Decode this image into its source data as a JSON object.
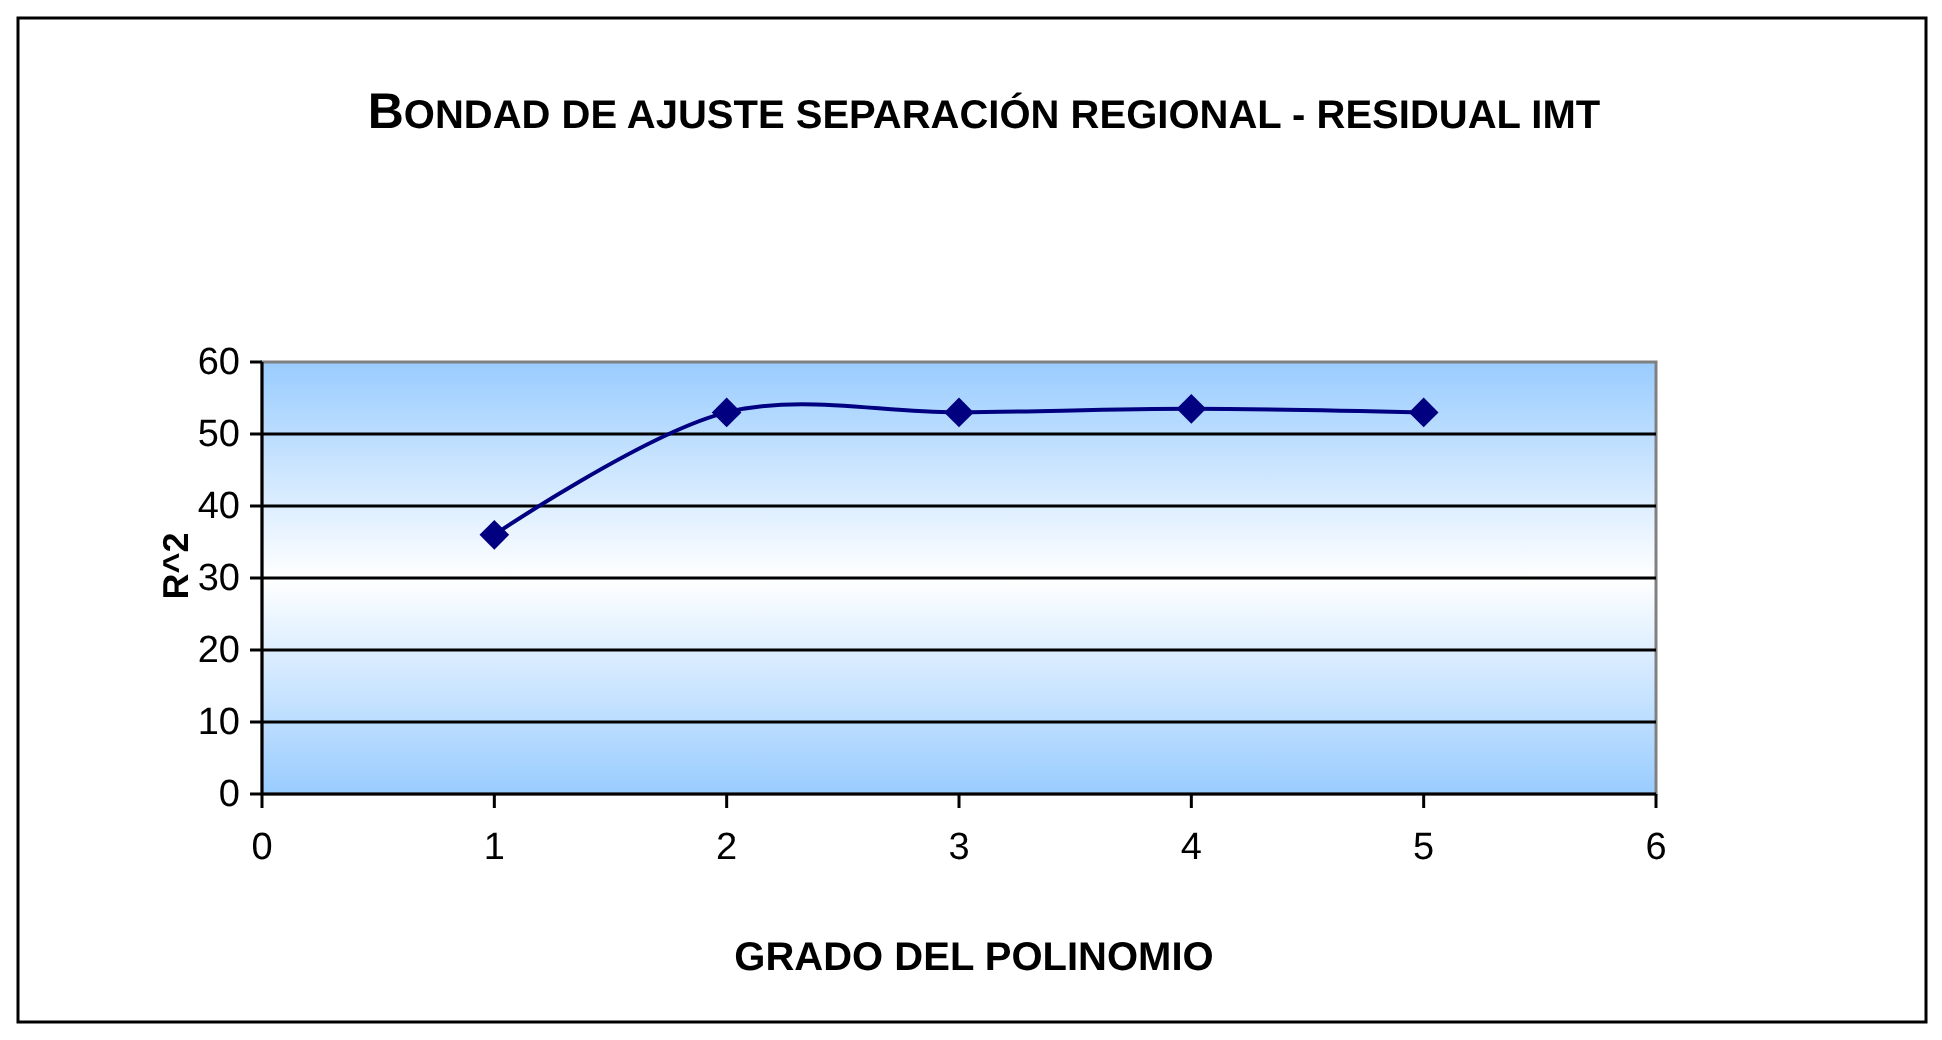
{
  "chart_data": {
    "type": "line",
    "title": "BONDAD DE AJUSTE SEPARACIÓN REGIONAL - RESIDUAL IMT",
    "xlabel": "GRADO DEL POLINOMIO",
    "ylabel": "R^2",
    "x": [
      1,
      2,
      3,
      4,
      5
    ],
    "series": [
      {
        "color": "#000080",
        "values": [
          36,
          53,
          53,
          53.5,
          53
        ]
      }
    ],
    "xlim": [
      0,
      6
    ],
    "xticks": [
      0,
      1,
      2,
      3,
      4,
      5,
      6
    ],
    "ylim": [
      0,
      60
    ],
    "yticks": [
      0,
      10,
      20,
      30,
      40,
      50,
      60
    ],
    "grid": "y",
    "marker": "diamond",
    "line_style": "solid"
  }
}
